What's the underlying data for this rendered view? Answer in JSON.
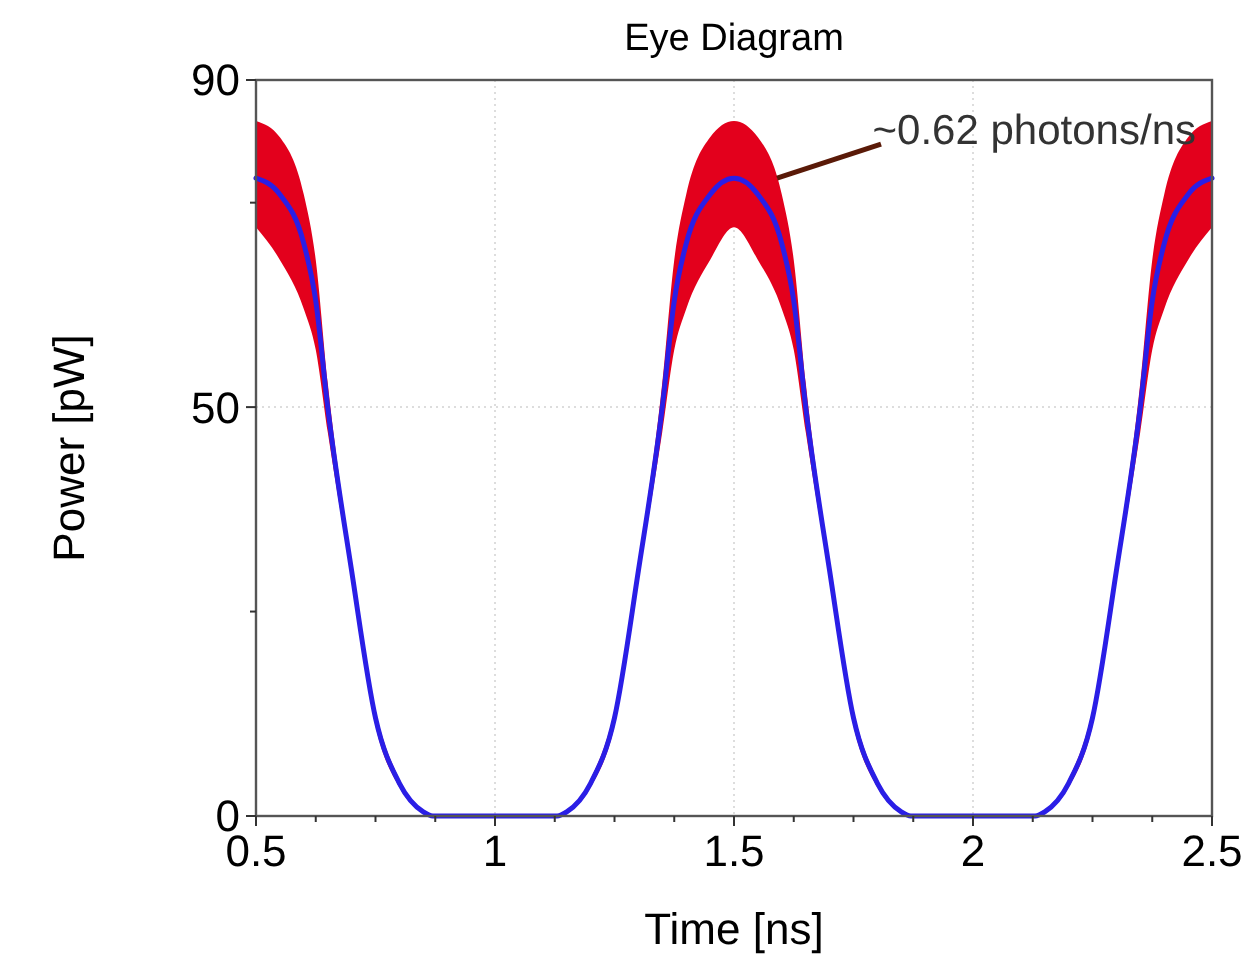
{
  "chart_data": {
    "type": "line",
    "title": "Eye Diagram",
    "xlabel": "Time [ns]",
    "ylabel": "Power [pW]",
    "xlim": [
      0.5,
      2.5
    ],
    "ylim": [
      0,
      90
    ],
    "xticks": [
      0.5,
      {
        "value": 0.625,
        "label": null
      },
      {
        "value": 0.75,
        "label": null
      },
      {
        "value": 0.875,
        "label": null
      },
      1,
      {
        "value": 1.125,
        "label": null
      },
      {
        "value": 1.25,
        "label": null
      },
      {
        "value": 1.375,
        "label": null
      },
      1.5,
      {
        "value": 1.625,
        "label": null
      },
      {
        "value": 1.75,
        "label": null
      },
      {
        "value": 1.875,
        "label": null
      },
      2,
      {
        "value": 2.125,
        "label": null
      },
      {
        "value": 2.25,
        "label": null
      },
      {
        "value": 2.375,
        "label": null
      },
      2.5
    ],
    "yticks": [
      0,
      {
        "value": 25,
        "label": null
      },
      50,
      {
        "value": 75,
        "label": null
      },
      90
    ],
    "grid": true,
    "line_style": "solid",
    "marker": "none",
    "x": [
      0.5,
      0.55,
      0.6,
      0.625,
      0.65,
      0.7,
      0.75,
      0.8,
      0.85,
      0.87,
      0.9,
      1.0,
      1.1,
      1.13,
      1.15,
      1.2,
      1.25,
      1.3,
      1.35,
      1.375,
      1.4,
      1.45,
      1.5,
      1.55,
      1.6,
      1.625,
      1.65,
      1.7,
      1.75,
      1.8,
      1.85,
      1.87,
      1.9,
      2.0,
      2.1,
      2.13,
      2.15,
      2.2,
      2.25,
      2.3,
      2.35,
      2.375,
      2.4,
      2.45,
      2.5
    ],
    "series": [
      {
        "color": "#2a1ee6",
        "values": [
          78,
          76,
          70,
          63,
          50,
          30,
          12,
          4,
          0.5,
          0,
          0,
          0,
          0,
          0,
          0.5,
          4,
          12,
          30,
          50,
          63,
          70,
          76,
          78,
          76,
          70,
          63,
          50,
          30,
          12,
          4,
          0.5,
          0,
          0,
          0,
          0,
          0,
          0.5,
          4,
          12,
          30,
          50,
          63,
          70,
          76,
          78
        ],
        "upper": [
          85,
          83,
          76,
          68,
          53,
          31,
          13,
          4.5,
          0.6,
          0,
          0,
          0,
          0,
          0,
          0.6,
          4.5,
          13,
          31,
          53,
          68,
          76,
          83,
          85,
          83,
          76,
          68,
          53,
          31,
          13,
          4.5,
          0.6,
          0,
          0,
          0,
          0,
          0,
          0.6,
          4.5,
          13,
          31,
          53,
          68,
          76,
          83,
          85
        ],
        "lower": [
          72,
          68,
          62,
          57,
          47,
          29,
          11,
          3.5,
          0.4,
          0,
          0,
          0,
          0,
          0,
          0.4,
          3.5,
          11,
          29,
          47,
          57,
          62,
          68,
          72,
          68,
          62,
          57,
          47,
          29,
          11,
          3.5,
          0.4,
          0,
          0,
          0,
          0,
          0,
          0.4,
          3.5,
          11,
          29,
          47,
          57,
          62,
          68,
          72
        ]
      }
    ],
    "annotations": [
      {
        "text": "~0.62 photons/ns",
        "x": 1.59,
        "y": 78
      }
    ]
  }
}
